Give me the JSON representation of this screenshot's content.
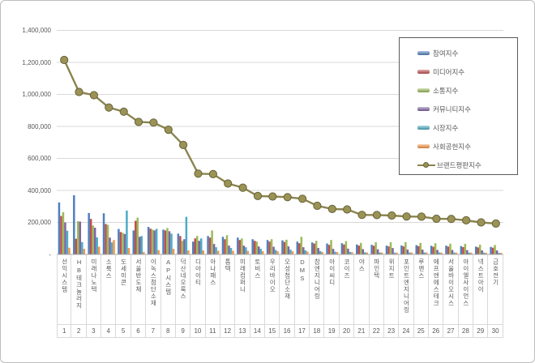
{
  "window": {
    "background": "#ffffff",
    "frame_border_color": "#bdbdbd"
  },
  "chart_data": {
    "type": "bar",
    "subtype": "clustered-bar-with-line-overlay",
    "title": "",
    "xlabel": "",
    "ylabel": "",
    "grid": true,
    "gridline_color": "#d9d9d9",
    "axis_text_color": "#595959",
    "legend_position": "inside-top-right",
    "y_axis": {
      "min": 0,
      "max": 1400000,
      "step": 200000,
      "tick_labels": [
        "-",
        "200,000",
        "400,000",
        "600,000",
        "800,000",
        "1,000,000",
        "1,200,000",
        "1,400,000"
      ]
    },
    "categories": [
      "선익시스템",
      "HB테크놀러지",
      "미래나노텍",
      "소룩스",
      "도세미콘",
      "서울반도체",
      "이녹스첨단소재",
      "AP시스템",
      "덕산네오룩스",
      "디아이티",
      "아나패스",
      "톱텍",
      "미래컴퍼니",
      "토비스",
      "우리바이오",
      "오성첨단소재",
      "DMS",
      "참엔지니어링",
      "아이씨디",
      "코이즈",
      "야스",
      "파인텍",
      "위지트",
      "포인트엔지니어링",
      "루멘스",
      "에프엔에스테크",
      "서울바이오시스",
      "아이엘사이언스",
      "넥스트아이",
      "금호전기"
    ],
    "rank_labels": [
      "1",
      "2",
      "3",
      "4",
      "5",
      "6",
      "7",
      "8",
      "9",
      "10",
      "11",
      "12",
      "13",
      "14",
      "15",
      "16",
      "17",
      "18",
      "19",
      "20",
      "21",
      "22",
      "23",
      "24",
      "25",
      "26",
      "27",
      "28",
      "29",
      "30"
    ],
    "bar_series": [
      {
        "key": "participation-index",
        "name": "참여지수",
        "color": "#4F81BD",
        "values": [
          325000,
          370000,
          259000,
          257000,
          159000,
          150000,
          172000,
          155000,
          130000,
          80000,
          115000,
          110000,
          105000,
          95000,
          90000,
          88000,
          80000,
          75000,
          68000,
          70000,
          62000,
          60000,
          55000,
          56000,
          58000,
          54000,
          55000,
          52000,
          49000,
          47000
        ]
      },
      {
        "key": "media-index",
        "name": "미디어지수",
        "color": "#C0504D",
        "values": [
          240000,
          98000,
          222000,
          190000,
          140000,
          210000,
          161000,
          150000,
          115000,
          100000,
          105000,
          95000,
          90000,
          85000,
          80000,
          78000,
          70000,
          68000,
          60000,
          62000,
          55000,
          54000,
          50000,
          50000,
          52000,
          48000,
          49000,
          46000,
          44000,
          42000
        ]
      },
      {
        "key": "communication-index",
        "name": "소통지수",
        "color": "#9BBB59",
        "values": [
          264000,
          208000,
          181000,
          185000,
          135000,
          230000,
          155000,
          165000,
          85000,
          115000,
          150000,
          120000,
          100000,
          80000,
          95000,
          92000,
          110000,
          85000,
          90000,
          83000,
          72000,
          76000,
          76000,
          77000,
          72000,
          70000,
          67000,
          66000,
          61000,
          59000
        ]
      },
      {
        "key": "community-index",
        "name": "커뮤니티지수",
        "color": "#8064A2",
        "values": [
          200000,
          205000,
          167000,
          105000,
          128000,
          110000,
          150000,
          145000,
          95000,
          85000,
          65000,
          55000,
          55000,
          50000,
          48000,
          50000,
          45000,
          40000,
          35000,
          36000,
          33000,
          32000,
          40000,
          30000,
          30000,
          28000,
          28000,
          27000,
          25000,
          25000
        ]
      },
      {
        "key": "market-index",
        "name": "시장지수",
        "color": "#4BACC6",
        "values": [
          148000,
          77000,
          107000,
          75000,
          274000,
          115000,
          160000,
          130000,
          235000,
          100000,
          45000,
          40000,
          45000,
          35000,
          28000,
          30000,
          25000,
          21000,
          17000,
          16000,
          13000,
          12000,
          11000,
          12000,
          12000,
          12000,
          12000,
          11000,
          11000,
          10000
        ]
      },
      {
        "key": "social-contribution-index",
        "name": "사회공헌지수",
        "color": "#F79646",
        "values": [
          42000,
          35000,
          48000,
          90000,
          40000,
          15000,
          27000,
          35000,
          25000,
          25000,
          23000,
          23000,
          22000,
          20000,
          20000,
          20000,
          18000,
          15000,
          14000,
          14000,
          12000,
          12000,
          11000,
          12000,
          12000,
          11000,
          11000,
          11000,
          10000,
          10000
        ]
      }
    ],
    "line_series": {
      "key": "brand-reputation-index",
      "name": "브랜드평판지수",
      "line_color": "#8A844F",
      "marker_fill": "#9A9355",
      "marker_stroke": "#676239",
      "values": [
        1215000,
        1015000,
        995000,
        918000,
        892000,
        828000,
        824000,
        779000,
        684000,
        505000,
        502000,
        443000,
        417000,
        365000,
        362000,
        358000,
        348000,
        304000,
        284000,
        281000,
        247000,
        246000,
        243000,
        237000,
        236000,
        223000,
        222000,
        213000,
        200000,
        193000
      ]
    }
  }
}
